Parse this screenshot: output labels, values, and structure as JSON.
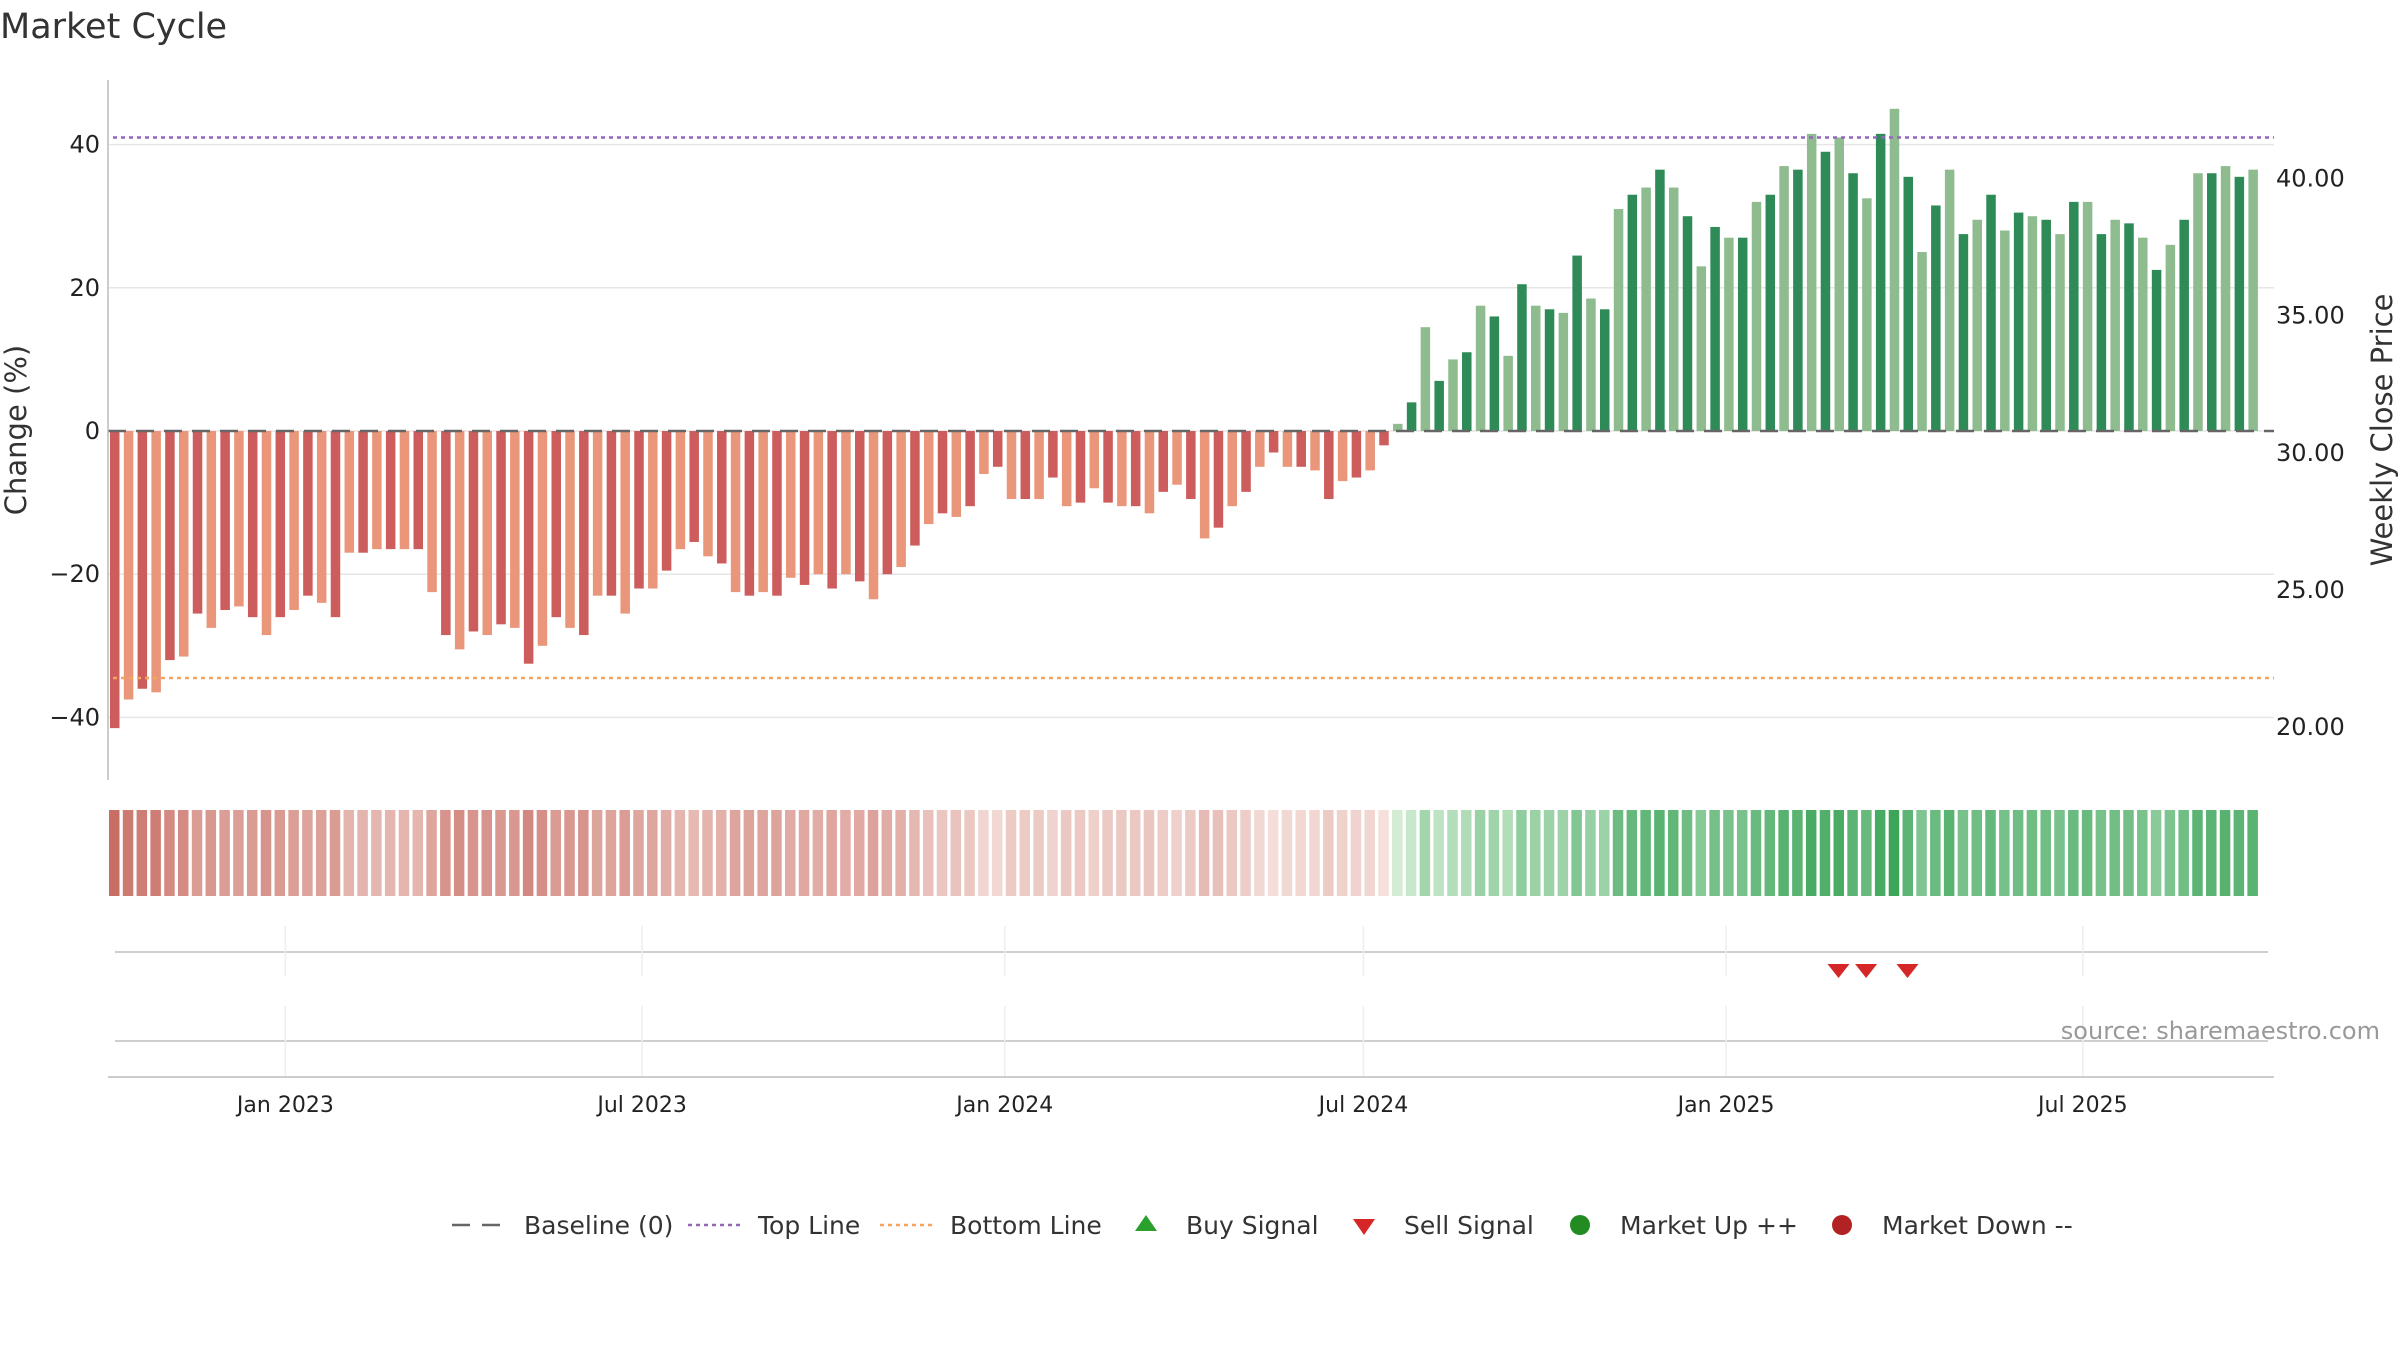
{
  "title": "Market Cycle",
  "source": "source: sharemaestro.com",
  "colors": {
    "negative_strong": "#cd5c5c",
    "negative_light": "#e9967a",
    "positive_strong": "#2e8b57",
    "positive_light": "#8fbc8f",
    "top_line": "#9467bd",
    "bottom_line": "#f4a460",
    "baseline": "#666666",
    "sell_signal": "#d62728",
    "buy_signal": "#2ca02c"
  },
  "chart_data": {
    "type": "bar",
    "title": "Market Cycle",
    "ylabel": "Change (%)",
    "y2label": "Weekly Close Price",
    "ylim": [
      -49,
      49
    ],
    "y2lim": [
      16.75,
      43.6
    ],
    "yticks": [
      -40,
      -20,
      0,
      20,
      40
    ],
    "yticklabels": [
      "−40",
      "−20",
      "0",
      "20",
      "40"
    ],
    "y2ticks": [
      20,
      25,
      30,
      35,
      40
    ],
    "y2ticklabels": [
      "20.00",
      "25.00",
      "30.00",
      "35.00",
      "40.00"
    ],
    "top_line": 41,
    "bottom_line": -34.5,
    "x_start": "2022-10-03",
    "x_end": "2025-10-06",
    "date_ticks": [
      {
        "date": "2023-01-01",
        "label": "Jan 2023"
      },
      {
        "date": "2023-07-01",
        "label": "Jul 2023"
      },
      {
        "date": "2024-01-01",
        "label": "Jan 2024"
      },
      {
        "date": "2024-07-01",
        "label": "Jul 2024"
      },
      {
        "date": "2025-01-01",
        "label": "Jan 2025"
      },
      {
        "date": "2025-07-01",
        "label": "Jul 2025"
      }
    ],
    "first_week": "2022-10-03",
    "values": [
      -41.5,
      -37.5,
      -36,
      -36.5,
      -32,
      -31.5,
      -25.5,
      -27.5,
      -25,
      -24.5,
      -26,
      -28.5,
      -26,
      -25,
      -23,
      -24,
      -26,
      -17,
      -17,
      -16.5,
      -16.5,
      -16.5,
      -16.5,
      -22.5,
      -28.5,
      -30.5,
      -28,
      -28.5,
      -27,
      -27.5,
      -32.5,
      -30,
      -26,
      -27.5,
      -28.5,
      -23,
      -23,
      -25.5,
      -22,
      -22,
      -19.5,
      -16.5,
      -15.5,
      -17.5,
      -18.5,
      -22.5,
      -23,
      -22.5,
      -23,
      -20.5,
      -21.5,
      -20,
      -22,
      -20,
      -21,
      -23.5,
      -20,
      -19,
      -16,
      -13,
      -11.5,
      -12,
      -10.5,
      -6,
      -5,
      -9.5,
      -9.5,
      -9.5,
      -6.5,
      -10.5,
      -10,
      -8,
      -10,
      -10.5,
      -10.5,
      -11.5,
      -8.5,
      -7.5,
      -9.5,
      -15,
      -13.5,
      -10.5,
      -8.5,
      -5,
      -3,
      -5,
      -5,
      -5.5,
      -9.5,
      -7,
      -6.5,
      -5.5,
      -2,
      1,
      4,
      14.5,
      7,
      10,
      11,
      17.5,
      16,
      10.5,
      20.5,
      17.5,
      17,
      16.5,
      24.5,
      18.5,
      17,
      31,
      33,
      34,
      36.5,
      34,
      30,
      23,
      28.5,
      27,
      27,
      32,
      33,
      37,
      36.5,
      41.5,
      39,
      41,
      36,
      32.5,
      41.5,
      45,
      35.5,
      25,
      31.5,
      36.5,
      27.5,
      29.5,
      33,
      28,
      30.5,
      30,
      29.5,
      27.5,
      32,
      32,
      27.5,
      29.5,
      29,
      27,
      22.5,
      26,
      29.5,
      36,
      36,
      37,
      35.5,
      36.5
    ],
    "signals": [
      {
        "type": "sell",
        "week": 125
      },
      {
        "type": "sell",
        "week": 127
      },
      {
        "type": "sell",
        "week": 130
      }
    ],
    "legend": [
      "Baseline (0)",
      "Top Line",
      "Bottom Line",
      "Buy Signal",
      "Sell Signal",
      "Market Up ++",
      "Market Down --"
    ]
  }
}
